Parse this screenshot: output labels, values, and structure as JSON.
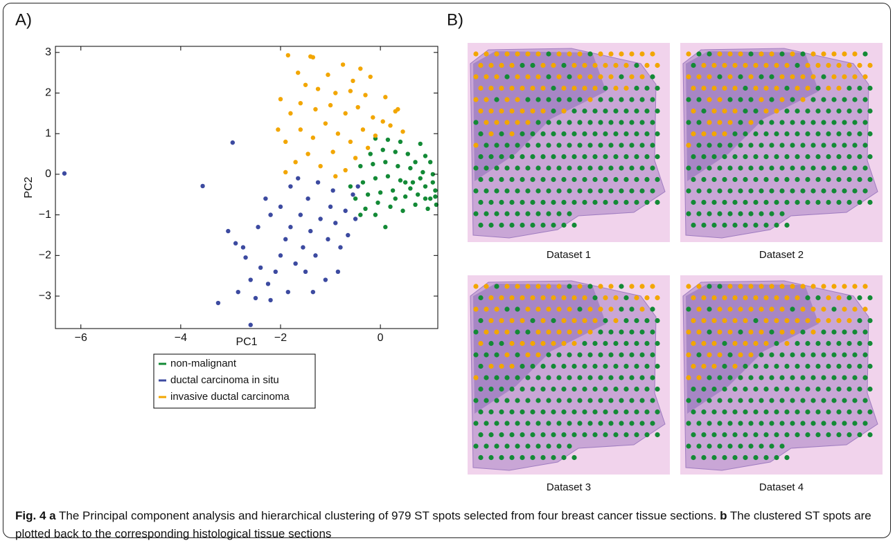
{
  "panel_a_label": "A)",
  "panel_b_label": "B)",
  "chart_data": {
    "type": "scatter",
    "xlabel": "PC1",
    "ylabel": "PC2",
    "xlim": [
      -6.51,
      1.15
    ],
    "ylim": [
      -3.8,
      3.15
    ],
    "xticks": [
      {
        "value": -6,
        "label": "−6"
      },
      {
        "value": -4,
        "label": "−4"
      },
      {
        "value": -2,
        "label": "−2"
      },
      0
    ],
    "yticks": [
      {
        "value": -3,
        "label": "−3"
      },
      {
        "value": -2,
        "label": "−2"
      },
      {
        "value": -1,
        "label": "−1"
      },
      0,
      1,
      2,
      3
    ],
    "series": [
      {
        "name": "non-malignant",
        "color": "#138a36",
        "x": [
          -0.1,
          0.15,
          0.4,
          0.8,
          -0.2,
          0.05,
          0.3,
          0.55,
          0.9,
          1.0,
          -0.4,
          -0.15,
          0.1,
          0.35,
          0.6,
          0.85,
          1.05,
          -0.6,
          -0.35,
          -0.1,
          0.15,
          0.4,
          0.65,
          0.9,
          1.1,
          -0.5,
          -0.25,
          0.0,
          0.25,
          0.5,
          0.75,
          1.0,
          1.12,
          -0.4,
          -0.1,
          0.1,
          0.2,
          0.45,
          0.7,
          0.95,
          1.05,
          0.8,
          0.6,
          0.3,
          -0.05,
          0.9,
          1.1,
          0.7,
          0.5,
          -0.3
        ],
        "y": [
          0.88,
          0.85,
          0.8,
          0.75,
          0.5,
          0.6,
          0.55,
          0.5,
          0.45,
          0.3,
          0.2,
          0.25,
          0.3,
          0.2,
          0.15,
          0.05,
          0.0,
          -0.3,
          -0.2,
          -0.1,
          -0.05,
          -0.15,
          -0.2,
          -0.3,
          -0.4,
          -0.6,
          -0.5,
          -0.45,
          -0.4,
          -0.55,
          -0.5,
          -0.6,
          -0.75,
          -1.0,
          -1.0,
          -1.3,
          -0.8,
          -0.9,
          -0.75,
          -0.85,
          -0.2,
          -0.1,
          -0.35,
          -0.6,
          -0.7,
          -0.6,
          -0.55,
          0.3,
          -0.2,
          -0.85
        ]
      },
      {
        "name": "ductal carcinoma in situ",
        "color": "#3c4aa0",
        "x": [
          -6.33,
          -2.96,
          -3.56,
          -3.25,
          -2.6,
          -3.05,
          -2.9,
          -2.75,
          -2.7,
          -2.85,
          -2.6,
          -2.5,
          -2.4,
          -2.25,
          -2.2,
          -2.1,
          -2.0,
          -1.9,
          -1.85,
          -1.8,
          -1.7,
          -1.6,
          -1.55,
          -1.5,
          -1.45,
          -1.4,
          -1.3,
          -1.25,
          -1.2,
          -1.1,
          -1.05,
          -1.0,
          -0.95,
          -0.9,
          -0.85,
          -0.8,
          -0.7,
          -0.65,
          -0.55,
          -0.5,
          -2.3,
          -2.2,
          -2.0,
          -1.8,
          -1.65,
          -2.45,
          -1.35,
          -0.45
        ],
        "y": [
          0.02,
          0.78,
          -0.29,
          -3.17,
          -3.71,
          -1.4,
          -1.7,
          -1.8,
          -2.05,
          -2.9,
          -2.6,
          -3.05,
          -2.3,
          -2.7,
          -3.1,
          -2.4,
          -2.0,
          -1.6,
          -2.9,
          -1.3,
          -2.2,
          -1.0,
          -1.8,
          -2.4,
          -0.6,
          -1.4,
          -2.0,
          -0.2,
          -1.1,
          -2.6,
          -1.6,
          -0.8,
          -0.4,
          -1.2,
          -2.4,
          -1.8,
          -0.9,
          -1.5,
          -0.5,
          -1.1,
          -0.6,
          -1.0,
          -0.8,
          -0.3,
          -0.1,
          -1.3,
          -2.9,
          -0.3
        ]
      },
      {
        "name": "invasive ductal carcinoma",
        "color": "#f2a600",
        "x": [
          -1.85,
          -1.4,
          -1.35,
          -0.75,
          -0.4,
          -1.65,
          -1.05,
          -0.55,
          -0.2,
          -2.0,
          -1.5,
          -1.25,
          -0.9,
          -0.6,
          -0.3,
          0.1,
          0.35,
          -2.05,
          -1.8,
          -1.6,
          -1.3,
          -1.0,
          -0.7,
          -0.45,
          -0.15,
          0.2,
          0.45,
          -1.9,
          -1.6,
          -1.35,
          -1.1,
          -0.85,
          -0.6,
          -0.35,
          -0.1,
          -1.7,
          -1.45,
          -1.2,
          -0.95,
          -0.7,
          -0.5,
          -0.25,
          -1.9,
          -0.9,
          0.05,
          0.3
        ],
        "y": [
          2.93,
          2.9,
          2.88,
          2.7,
          2.6,
          2.5,
          2.45,
          2.3,
          2.4,
          1.85,
          2.2,
          2.1,
          2.0,
          2.05,
          1.95,
          1.9,
          1.6,
          1.1,
          1.5,
          1.75,
          1.6,
          1.7,
          1.5,
          1.65,
          1.4,
          1.2,
          1.05,
          0.8,
          1.1,
          0.9,
          1.25,
          1.0,
          0.8,
          1.1,
          0.95,
          0.3,
          0.5,
          0.2,
          0.55,
          0.1,
          0.4,
          0.65,
          0.05,
          -0.05,
          1.3,
          1.55
        ]
      }
    ]
  },
  "datasets": [
    "Dataset 1",
    "Dataset 2",
    "Dataset 3",
    "Dataset 4"
  ],
  "caption": {
    "fig": "Fig. 4",
    "a": "a",
    "text_a": "The Principal component analysis and hierarchical clustering of 979 ST spots selected from four breast cancer tissue sections.",
    "b": "b",
    "text_b": "The clustered ST spots are plotted back to the corresponding histological tissue sections"
  }
}
